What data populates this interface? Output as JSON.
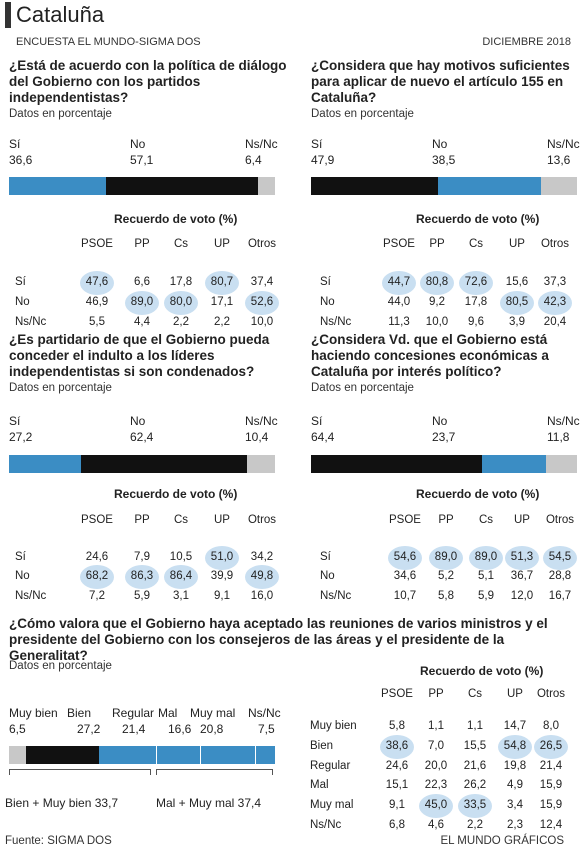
{
  "header": {
    "title": "Cataluña",
    "left": "ENCUESTA EL MUNDO-SIGMA DOS",
    "right": "DICIEMBRE 2018"
  },
  "footer": {
    "source": "Fuente: SIGMA DOS",
    "credit": "EL MUNDO GRÁFICOS"
  },
  "colors": {
    "si": "#3b8dc4",
    "no": "#111111",
    "nsnc": "#c8c8c8",
    "highlight": "#c9dff1"
  },
  "chart_data": [
    {
      "type": "bar",
      "title": "¿Está de acuerdo con la política de diálogo del Gobierno con los partidos independentistas?",
      "unit": "Datos en porcentaje",
      "categories": [
        "Sí",
        "No",
        "Ns/Nc"
      ],
      "values": [
        36.6,
        57.1,
        6.4
      ],
      "labels": [
        "36,6",
        "57,1",
        "6,4"
      ],
      "table": {
        "title": "Recuerdo de voto (%)",
        "columns": [
          "PSOE",
          "PP",
          "Cs",
          "UP",
          "Otros"
        ],
        "rows": [
          {
            "label": "Sí",
            "values": [
              "47,6",
              "6,6",
              "17,8",
              "80,7",
              "37,4"
            ],
            "highlight": [
              0,
              3
            ]
          },
          {
            "label": "No",
            "values": [
              "46,9",
              "89,0",
              "80,0",
              "17,1",
              "52,6"
            ],
            "highlight": [
              1,
              2,
              4
            ]
          },
          {
            "label": "Ns/Nc",
            "values": [
              "5,5",
              "4,4",
              "2,2",
              "2,2",
              "10,0"
            ],
            "highlight": []
          }
        ]
      }
    },
    {
      "type": "bar",
      "title": "¿Considera que hay motivos suficientes para aplicar de nuevo el artículo 155 en Cataluña?",
      "unit": "Datos en porcentaje",
      "categories": [
        "Sí",
        "No",
        "Ns/Nc"
      ],
      "values": [
        47.9,
        38.5,
        13.6
      ],
      "labels": [
        "47,9",
        "38,5",
        "13,6"
      ],
      "table": {
        "title": "Recuerdo de voto (%)",
        "columns": [
          "PSOE",
          "PP",
          "Cs",
          "UP",
          "Otros"
        ],
        "rows": [
          {
            "label": "Sí",
            "values": [
              "44,7",
              "80,8",
              "72,6",
              "15,6",
              "37,3"
            ],
            "highlight": [
              0,
              1,
              2
            ]
          },
          {
            "label": "No",
            "values": [
              "44,0",
              "9,2",
              "17,8",
              "80,5",
              "42,3"
            ],
            "highlight": [
              3,
              4
            ]
          },
          {
            "label": "Ns/Nc",
            "values": [
              "11,3",
              "10,0",
              "9,6",
              "3,9",
              "20,4"
            ],
            "highlight": []
          }
        ]
      }
    },
    {
      "type": "bar",
      "title": "¿Es partidario de que el Gobierno pueda conceder el indulto a los líderes independentistas si son condenados?",
      "unit": "Datos en porcentaje",
      "categories": [
        "Sí",
        "No",
        "Ns/Nc"
      ],
      "values": [
        27.2,
        62.4,
        10.4
      ],
      "labels": [
        "27,2",
        "62,4",
        "10,4"
      ],
      "table": {
        "title": "Recuerdo de voto (%)",
        "columns": [
          "PSOE",
          "PP",
          "Cs",
          "UP",
          "Otros"
        ],
        "rows": [
          {
            "label": "Sí",
            "values": [
              "24,6",
              "7,9",
              "10,5",
              "51,0",
              "34,2"
            ],
            "highlight": [
              3
            ]
          },
          {
            "label": "No",
            "values": [
              "68,2",
              "86,3",
              "86,4",
              "39,9",
              "49,8"
            ],
            "highlight": [
              0,
              1,
              2,
              4
            ]
          },
          {
            "label": "Ns/Nc",
            "values": [
              "7,2",
              "5,9",
              "3,1",
              "9,1",
              "16,0"
            ],
            "highlight": []
          }
        ]
      }
    },
    {
      "type": "bar",
      "title": "¿Considera Vd. que el Gobierno está haciendo concesiones económicas a Cataluña por interés político?",
      "unit": "Datos en porcentaje",
      "categories": [
        "Sí",
        "No",
        "Ns/Nc"
      ],
      "values": [
        64.4,
        23.7,
        11.8
      ],
      "labels": [
        "64,4",
        "23,7",
        "11,8"
      ],
      "table": {
        "title": "Recuerdo de voto (%)",
        "columns": [
          "PSOE",
          "PP",
          "Cs",
          "UP",
          "Otros"
        ],
        "rows": [
          {
            "label": "Sí",
            "values": [
              "54,6",
              "89,0",
              "89,0",
              "51,3",
              "54,5"
            ],
            "highlight": [
              0,
              1,
              2,
              3,
              4
            ]
          },
          {
            "label": "No",
            "values": [
              "34,6",
              "5,2",
              "5,1",
              "36,7",
              "28,8"
            ],
            "highlight": []
          },
          {
            "label": "Ns/Nc",
            "values": [
              "10,7",
              "5,8",
              "5,9",
              "12,0",
              "16,7"
            ],
            "highlight": []
          }
        ]
      }
    },
    {
      "type": "bar",
      "title": "¿Cómo valora que el Gobierno haya aceptado las reuniones de varios ministros y el presidente del Gobierno con los consejeros de las áreas y el presidente de la Generalitat?",
      "unit": "Datos en porcentaje",
      "categories": [
        "Muy bien",
        "Bien",
        "Regular",
        "Mal",
        "Muy mal",
        "Ns/Nc"
      ],
      "values": [
        6.5,
        27.2,
        21.4,
        16.6,
        20.8,
        7.5
      ],
      "labels": [
        "6,5",
        "27,2",
        "21,4",
        "16,6",
        "20,8",
        "7,5"
      ],
      "groups": [
        "Bien + Muy bien 33,7",
        "Mal + Muy mal 37,4"
      ],
      "table": {
        "title": "Recuerdo de voto (%)",
        "columns": [
          "PSOE",
          "PP",
          "Cs",
          "UP",
          "Otros"
        ],
        "rows": [
          {
            "label": "Muy bien",
            "values": [
              "5,8",
              "1,1",
              "1,1",
              "14,7",
              "8,0"
            ],
            "highlight": []
          },
          {
            "label": "Bien",
            "values": [
              "38,6",
              "7,0",
              "15,5",
              "54,8",
              "26,5"
            ],
            "highlight": [
              0,
              3,
              4
            ]
          },
          {
            "label": "Regular",
            "values": [
              "24,6",
              "20,0",
              "21,6",
              "19,8",
              "21,4"
            ],
            "highlight": []
          },
          {
            "label": "Mal",
            "values": [
              "15,1",
              "22,3",
              "26,2",
              "4,9",
              "15,9"
            ],
            "highlight": []
          },
          {
            "label": "Muy mal",
            "values": [
              "9,1",
              "45,0",
              "33,5",
              "3,4",
              "15,9"
            ],
            "highlight": [
              1,
              2
            ]
          },
          {
            "label": "Ns/Nc",
            "values": [
              "6,8",
              "4,6",
              "2,2",
              "2,3",
              "12,4"
            ],
            "highlight": []
          }
        ]
      }
    }
  ]
}
